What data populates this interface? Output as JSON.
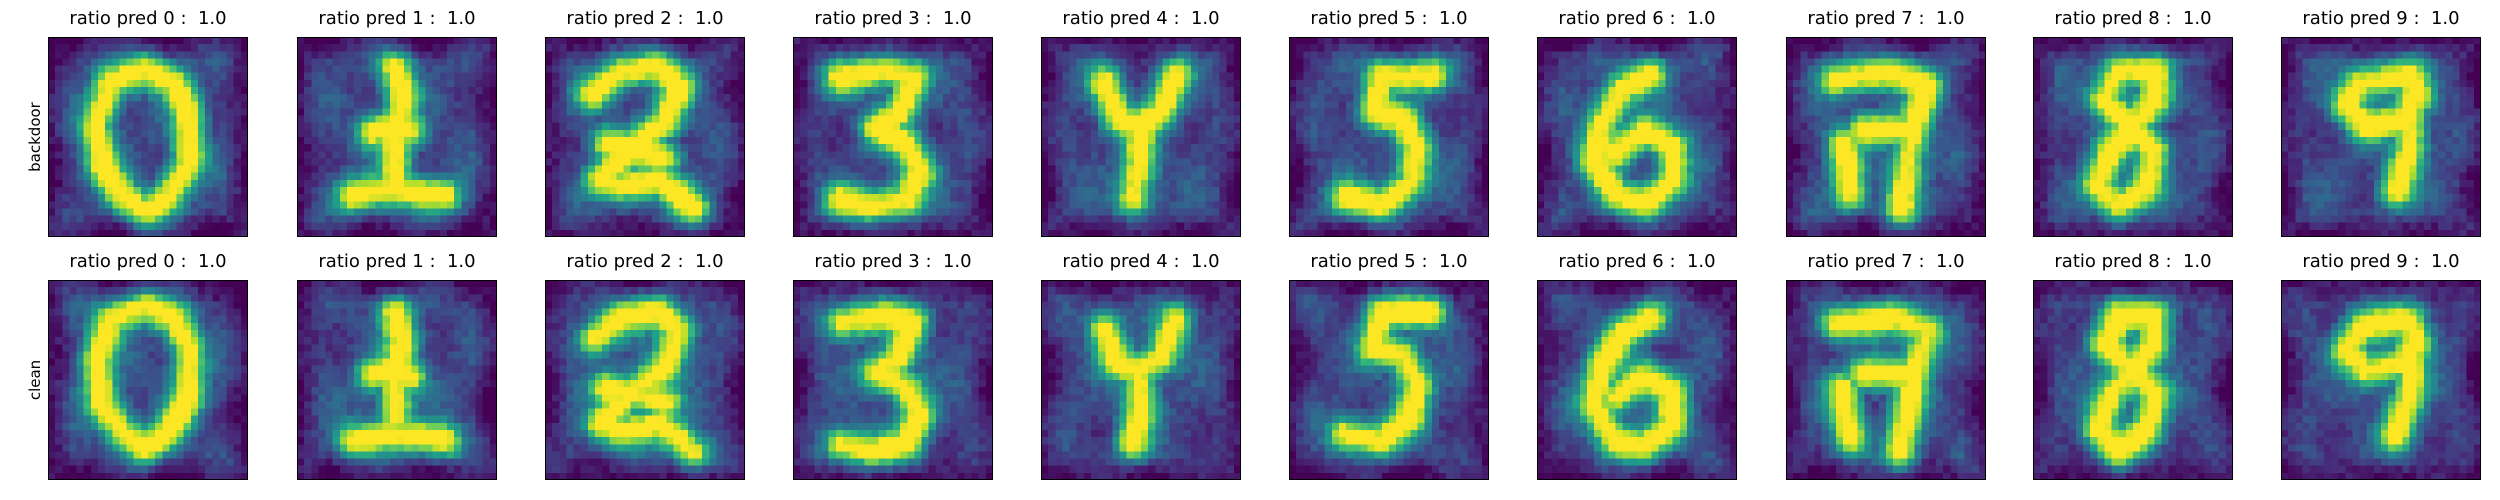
{
  "colors": {
    "colormap": "viridis",
    "background": "#ffffff",
    "frame": "#000000",
    "viridis_stops": [
      "#440154",
      "#482878",
      "#3e4989",
      "#31688e",
      "#26828e",
      "#1f9e89",
      "#35b779",
      "#6ece58",
      "#b5de2b",
      "#fde725"
    ]
  },
  "chart_data": {
    "type": "heatmap",
    "grid": false,
    "image_resolution": [
      28,
      28
    ],
    "value_range": [
      0,
      1
    ],
    "rows": [
      {
        "label": "backdoor",
        "panels": [
          {
            "digit": 0,
            "title": "ratio pred 0 :  1.0",
            "ratio": 1.0
          },
          {
            "digit": 1,
            "title": "ratio pred 1 :  1.0",
            "ratio": 1.0
          },
          {
            "digit": 2,
            "title": "ratio pred 2 :  1.0",
            "ratio": 1.0
          },
          {
            "digit": 3,
            "title": "ratio pred 3 :  1.0",
            "ratio": 1.0
          },
          {
            "digit": 4,
            "title": "ratio pred 4 :  1.0",
            "ratio": 1.0
          },
          {
            "digit": 5,
            "title": "ratio pred 5 :  1.0",
            "ratio": 1.0
          },
          {
            "digit": 6,
            "title": "ratio pred 6 :  1.0",
            "ratio": 1.0
          },
          {
            "digit": 7,
            "title": "ratio pred 7 :  1.0",
            "ratio": 1.0
          },
          {
            "digit": 8,
            "title": "ratio pred 8 :  1.0",
            "ratio": 1.0
          },
          {
            "digit": 9,
            "title": "ratio pred 9 :  1.0",
            "ratio": 1.0
          }
        ]
      },
      {
        "label": "clean",
        "panels": [
          {
            "digit": 0,
            "title": "ratio pred 0 :  1.0",
            "ratio": 1.0
          },
          {
            "digit": 1,
            "title": "ratio pred 1 :  1.0",
            "ratio": 1.0
          },
          {
            "digit": 2,
            "title": "ratio pred 2 :  1.0",
            "ratio": 1.0
          },
          {
            "digit": 3,
            "title": "ratio pred 3 :  1.0",
            "ratio": 1.0
          },
          {
            "digit": 4,
            "title": "ratio pred 4 :  1.0",
            "ratio": 1.0
          },
          {
            "digit": 5,
            "title": "ratio pred 5 :  1.0",
            "ratio": 1.0
          },
          {
            "digit": 6,
            "title": "ratio pred 6 :  1.0",
            "ratio": 1.0
          },
          {
            "digit": 7,
            "title": "ratio pred 7 :  1.0",
            "ratio": 1.0
          },
          {
            "digit": 8,
            "title": "ratio pred 8 :  1.0",
            "ratio": 1.0
          },
          {
            "digit": 9,
            "title": "ratio pred 9 :  1.0",
            "ratio": 1.0
          }
        ]
      }
    ]
  }
}
